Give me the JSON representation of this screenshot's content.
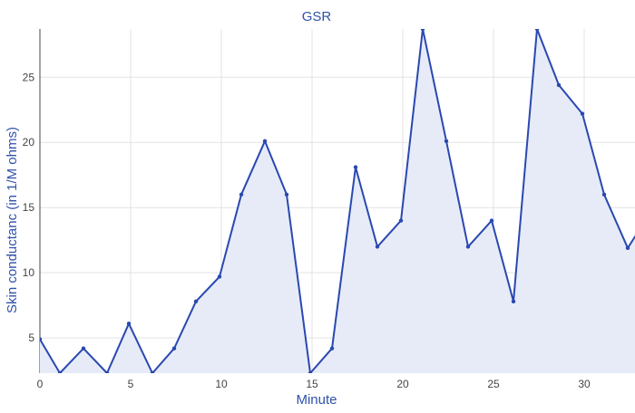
{
  "chart_data": {
    "type": "area",
    "title": "GSR",
    "xlabel": "Minute",
    "ylabel": "Skin conductanc (in 1/M ohms)",
    "xlim": [
      0,
      32.8
    ],
    "ylim": [
      2.3,
      28.7
    ],
    "x_ticks": [
      0,
      5,
      10,
      15,
      20,
      25,
      30
    ],
    "y_ticks": [
      5,
      10,
      15,
      20,
      25
    ],
    "grid": true,
    "legend": "none",
    "series": [
      {
        "x": [
          0,
          1.1,
          2.4,
          3.7,
          4.9,
          6.2,
          7.4,
          8.6,
          9.9,
          11.1,
          12.4,
          13.6,
          14.9,
          16.1,
          17.4,
          18.6,
          19.9,
          21.1,
          22.4,
          23.6,
          24.9,
          26.1,
          27.4,
          28.6,
          29.9,
          31.1,
          32.4,
          33.6
        ],
        "y": [
          4.9,
          2.3,
          4.2,
          2.3,
          6.1,
          2.3,
          4.2,
          7.8,
          9.7,
          16.0,
          20.1,
          16.0,
          2.3,
          4.2,
          18.1,
          12.0,
          14.0,
          28.7,
          20.1,
          12.0,
          14.0,
          7.8,
          28.7,
          24.4,
          22.2,
          16.0,
          11.9,
          14.5
        ]
      }
    ],
    "colors": {
      "line": "#2a48b0",
      "fill": "#e6ebf7",
      "marker": "#2a48b0"
    }
  }
}
